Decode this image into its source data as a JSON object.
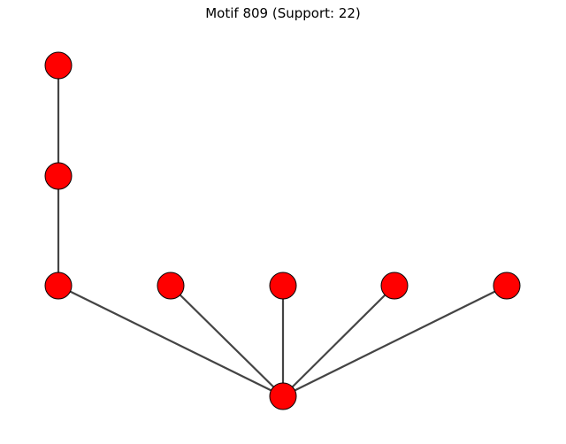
{
  "title": "Motif 809 (Support: 22)",
  "colors": {
    "node_fill": "#ff0000",
    "node_stroke": "#000000",
    "edge": "#444444",
    "background": "#ffffff"
  },
  "graph": {
    "nodes": [
      "n0",
      "n1",
      "n2",
      "n3",
      "n4",
      "n5",
      "n6",
      "n7"
    ],
    "edges": [
      [
        "n0",
        "n1"
      ],
      [
        "n1",
        "n2"
      ],
      [
        "n2",
        "n7"
      ],
      [
        "n3",
        "n7"
      ],
      [
        "n4",
        "n7"
      ],
      [
        "n5",
        "n7"
      ],
      [
        "n6",
        "n7"
      ]
    ]
  }
}
